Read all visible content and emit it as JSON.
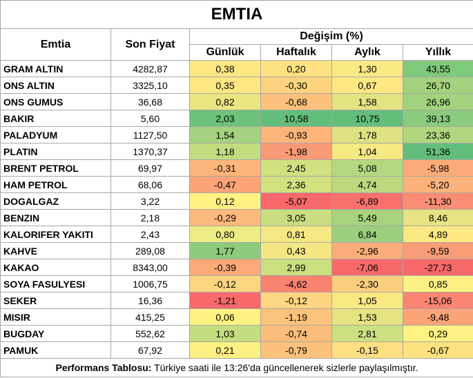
{
  "title": "EMTIA",
  "headers": {
    "emtia": "Emtia",
    "son_fiyat": "Son Fiyat",
    "degisim": "Değişim (%)",
    "gunluk": "Günlük",
    "haftalik": "Haftalık",
    "aylik": "Aylık",
    "yillik": "Yıllık"
  },
  "rows": [
    {
      "name": "GRAM ALTIN",
      "price": "4282,87",
      "d": "0,38",
      "w": "0,20",
      "m": "1,30",
      "y": "43,55"
    },
    {
      "name": "ONS ALTIN",
      "price": "3325,10",
      "d": "0,35",
      "w": "-0,30",
      "m": "0,67",
      "y": "26,70"
    },
    {
      "name": "ONS GUMUS",
      "price": "36,68",
      "d": "0,82",
      "w": "-0,68",
      "m": "1,58",
      "y": "26,96"
    },
    {
      "name": "BAKIR",
      "price": "5,60",
      "d": "2,03",
      "w": "10,58",
      "m": "10,75",
      "y": "39,13"
    },
    {
      "name": "PALADYUM",
      "price": "1127,50",
      "d": "1,54",
      "w": "-0,93",
      "m": "1,78",
      "y": "23,36"
    },
    {
      "name": "PLATIN",
      "price": "1370,37",
      "d": "1,18",
      "w": "-1,98",
      "m": "1,04",
      "y": "51,36"
    },
    {
      "name": "BRENT PETROL",
      "price": "69,97",
      "d": "-0,31",
      "w": "2,45",
      "m": "5,08",
      "y": "-5,98"
    },
    {
      "name": "HAM PETROL",
      "price": "68,06",
      "d": "-0,47",
      "w": "2,36",
      "m": "4,74",
      "y": "-5,20"
    },
    {
      "name": "DOGALGAZ",
      "price": "3,22",
      "d": "0,12",
      "w": "-5,07",
      "m": "-6,89",
      "y": "-11,30"
    },
    {
      "name": "BENZIN",
      "price": "2,18",
      "d": "-0,29",
      "w": "3,05",
      "m": "5,49",
      "y": "8,46"
    },
    {
      "name": "KALORIFER YAKITI",
      "price": "2,43",
      "d": "0,80",
      "w": "0,81",
      "m": "6,84",
      "y": "4,89"
    },
    {
      "name": "KAHVE",
      "price": "289,08",
      "d": "1,77",
      "w": "0,43",
      "m": "-2,96",
      "y": "-9,59"
    },
    {
      "name": "KAKAO",
      "price": "8343,00",
      "d": "-0,39",
      "w": "2,99",
      "m": "-7,06",
      "y": "-27,73"
    },
    {
      "name": "SOYA FASULYESI",
      "price": "1006,75",
      "d": "-0,12",
      "w": "-4,62",
      "m": "-2,30",
      "y": "0,85"
    },
    {
      "name": "SEKER",
      "price": "16,36",
      "d": "-1,21",
      "w": "-0,12",
      "m": "1,05",
      "y": "-15,06"
    },
    {
      "name": "MISIR",
      "price": "415,25",
      "d": "0,06",
      "w": "-1,19",
      "m": "1,53",
      "y": "-9,48"
    },
    {
      "name": "BUGDAY",
      "price": "552,62",
      "d": "1,03",
      "w": "-0,74",
      "m": "2,81",
      "y": "0,29"
    },
    {
      "name": "PAMUK",
      "price": "67,92",
      "d": "0,21",
      "w": "-0,79",
      "m": "-0,15",
      "y": "-0,67"
    }
  ],
  "colors": {
    "row_colors": [
      [
        "#fee783",
        "#fee282",
        "#f9e983",
        "#7fc97c"
      ],
      [
        "#fde783",
        "#fdd37f",
        "#fde983",
        "#a5d27e"
      ],
      [
        "#ebe582",
        "#fcc17c",
        "#e3e382",
        "#a3d27e"
      ],
      [
        "#6cc27a",
        "#63be7b",
        "#63be7b",
        "#8acb7d"
      ],
      [
        "#a5d27e",
        "#fcb47a",
        "#dfe282",
        "#b0d67f"
      ],
      [
        "#c3dc80",
        "#f99a77",
        "#f6e883",
        "#63be7b"
      ],
      [
        "#fdb57a",
        "#d1e081",
        "#b4d87f",
        "#fcaa78"
      ],
      [
        "#fca378",
        "#d4e181",
        "#bbd97f",
        "#fcb27a"
      ],
      [
        "#fff283",
        "#f8696b",
        "#f8716c",
        "#f98e74"
      ],
      [
        "#fcb97b",
        "#cadd80",
        "#a7d27e",
        "#e8e382"
      ],
      [
        "#edeb84",
        "#f5e783",
        "#9dcf7e",
        "#fde983"
      ],
      [
        "#8fcb7d",
        "#f3e783",
        "#fbad79",
        "#f99d76"
      ],
      [
        "#fcab78",
        "#cbdf80",
        "#f8696b",
        "#f8696b"
      ],
      [
        "#fdd57f",
        "#f98170",
        "#fccf7e",
        "#fef083"
      ],
      [
        "#f8696b",
        "#fed580",
        "#f9e983",
        "#f98572"
      ],
      [
        "#fff283",
        "#fcc37c",
        "#e5e382",
        "#fba477"
      ],
      [
        "#c5dd80",
        "#fcbd7c",
        "#cde081",
        "#fff283"
      ],
      [
        "#fff083",
        "#fcc27c",
        "#fee082",
        "#fde282"
      ]
    ]
  },
  "footer": {
    "bold": "Performans Tablosu:",
    "text": " Türkiye saati ile 13:26'da güncellenerek sizlerle paylaşılmıştır."
  }
}
